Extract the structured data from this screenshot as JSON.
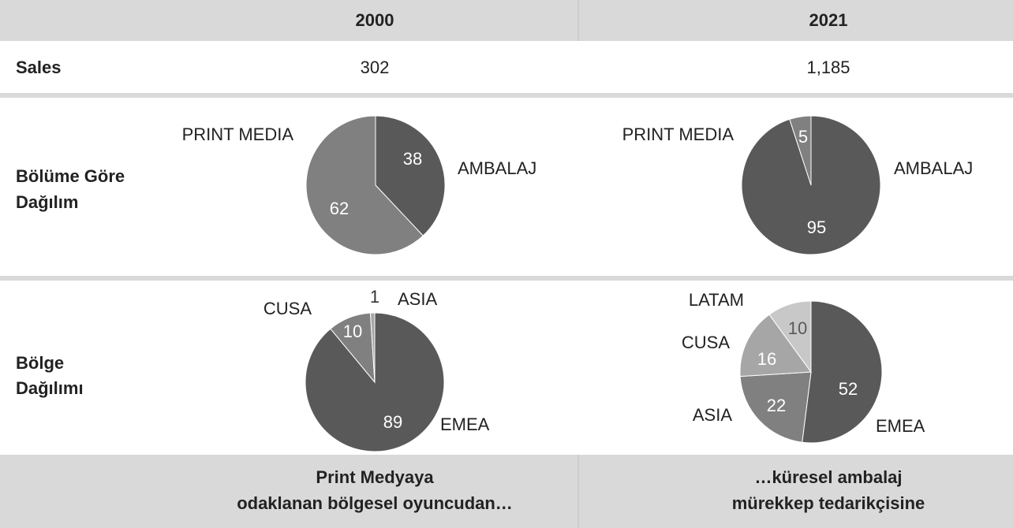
{
  "table": {
    "headers": [
      "2000",
      "2021"
    ],
    "rows": [
      {
        "label": "Sales",
        "values": [
          "302",
          "1,185"
        ]
      }
    ],
    "row_labels": [
      [
        "Bölüme Göre",
        "Dağılım"
      ],
      [
        "Bölge",
        "Dağılımı"
      ]
    ],
    "footer": [
      [
        "Print Medyaya",
        "odaklanan bölgesel oyuncudan…"
      ],
      [
        "…küresel ambalaj",
        "mürekkep tedarikçisine"
      ]
    ]
  },
  "chart_data": [
    {
      "type": "pie",
      "categories": [
        "AMBALAJ",
        "PRINT MEDIA"
      ],
      "values": [
        38,
        62
      ],
      "colors": [
        "#595959",
        "#808080"
      ]
    },
    {
      "type": "pie",
      "categories": [
        "AMBALAJ",
        "PRINT MEDIA"
      ],
      "values": [
        95,
        5
      ],
      "colors": [
        "#595959",
        "#808080"
      ]
    },
    {
      "type": "pie",
      "categories": [
        "EMEA",
        "CUSA",
        "ASIA"
      ],
      "values": [
        89,
        10,
        1
      ],
      "colors": [
        "#595959",
        "#808080",
        "#a6a6a6"
      ]
    },
    {
      "type": "pie",
      "categories": [
        "EMEA",
        "ASIA",
        "CUSA",
        "LATAM"
      ],
      "values": [
        52,
        22,
        16,
        10
      ],
      "colors": [
        "#595959",
        "#808080",
        "#a6a6a6",
        "#c8c8c8"
      ]
    }
  ]
}
